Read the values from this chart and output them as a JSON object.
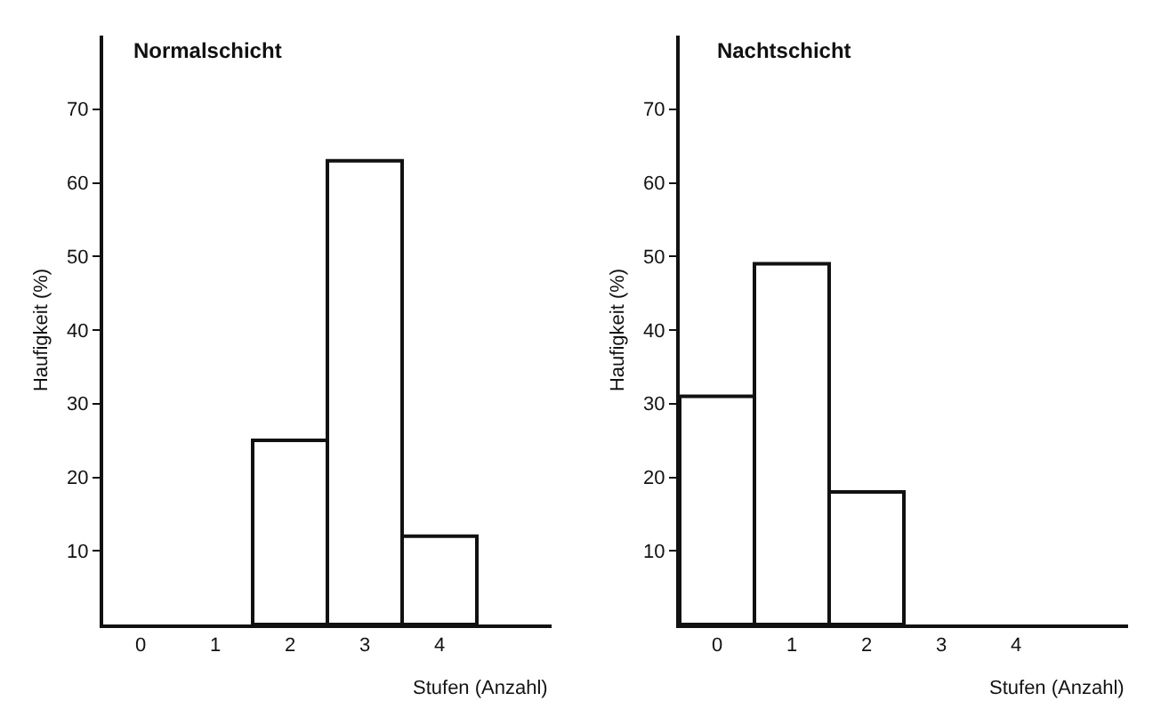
{
  "chart_data": [
    {
      "type": "bar",
      "title": "Normalschicht",
      "xlabel": "Stufen (Anzahl)",
      "ylabel": "Haufigkeit (%)",
      "categories": [
        "0",
        "1",
        "2",
        "3",
        "4"
      ],
      "values": [
        0,
        0,
        25,
        63,
        12
      ],
      "color": "#ffffff",
      "ylim": [
        0,
        80
      ],
      "yticks": [
        10,
        20,
        30,
        40,
        50,
        60,
        70
      ],
      "grid": false,
      "legend": false
    },
    {
      "type": "bar",
      "title": "Nachtschicht",
      "xlabel": "Stufen (Anzahl)",
      "ylabel": "Haufigkeit (%)",
      "categories": [
        "0",
        "1",
        "2",
        "3",
        "4"
      ],
      "values": [
        31,
        49,
        18,
        0,
        0
      ],
      "color": "#ffffff",
      "ylim": [
        0,
        80
      ],
      "yticks": [
        10,
        20,
        30,
        40,
        50,
        60,
        70
      ],
      "grid": false,
      "legend": false
    }
  ]
}
